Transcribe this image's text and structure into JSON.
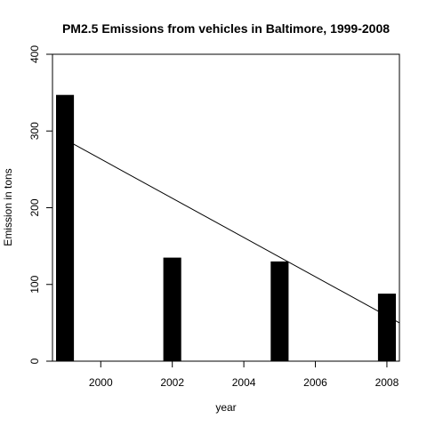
{
  "chart_data": {
    "type": "bar",
    "title": "PM2.5 Emissions from vehicles in Baltimore, 1999-2008",
    "xlabel": "year",
    "ylabel": "Emission in tons",
    "x": [
      1999,
      2002,
      2005,
      2008
    ],
    "values": [
      347,
      135,
      130,
      88
    ],
    "xlim": [
      1998.65,
      2008.35
    ],
    "ylim": [
      0,
      400
    ],
    "xticks": [
      2000,
      2002,
      2004,
      2006,
      2008
    ],
    "yticks": [
      0,
      100,
      200,
      300,
      400
    ],
    "bar_width_years": 0.5,
    "trend_line": {
      "from": [
        1999,
        289
      ],
      "to": [
        2008.35,
        50
      ]
    },
    "bar_color": "#000000",
    "line_color": "#000000",
    "grid": false,
    "legend": "none"
  }
}
